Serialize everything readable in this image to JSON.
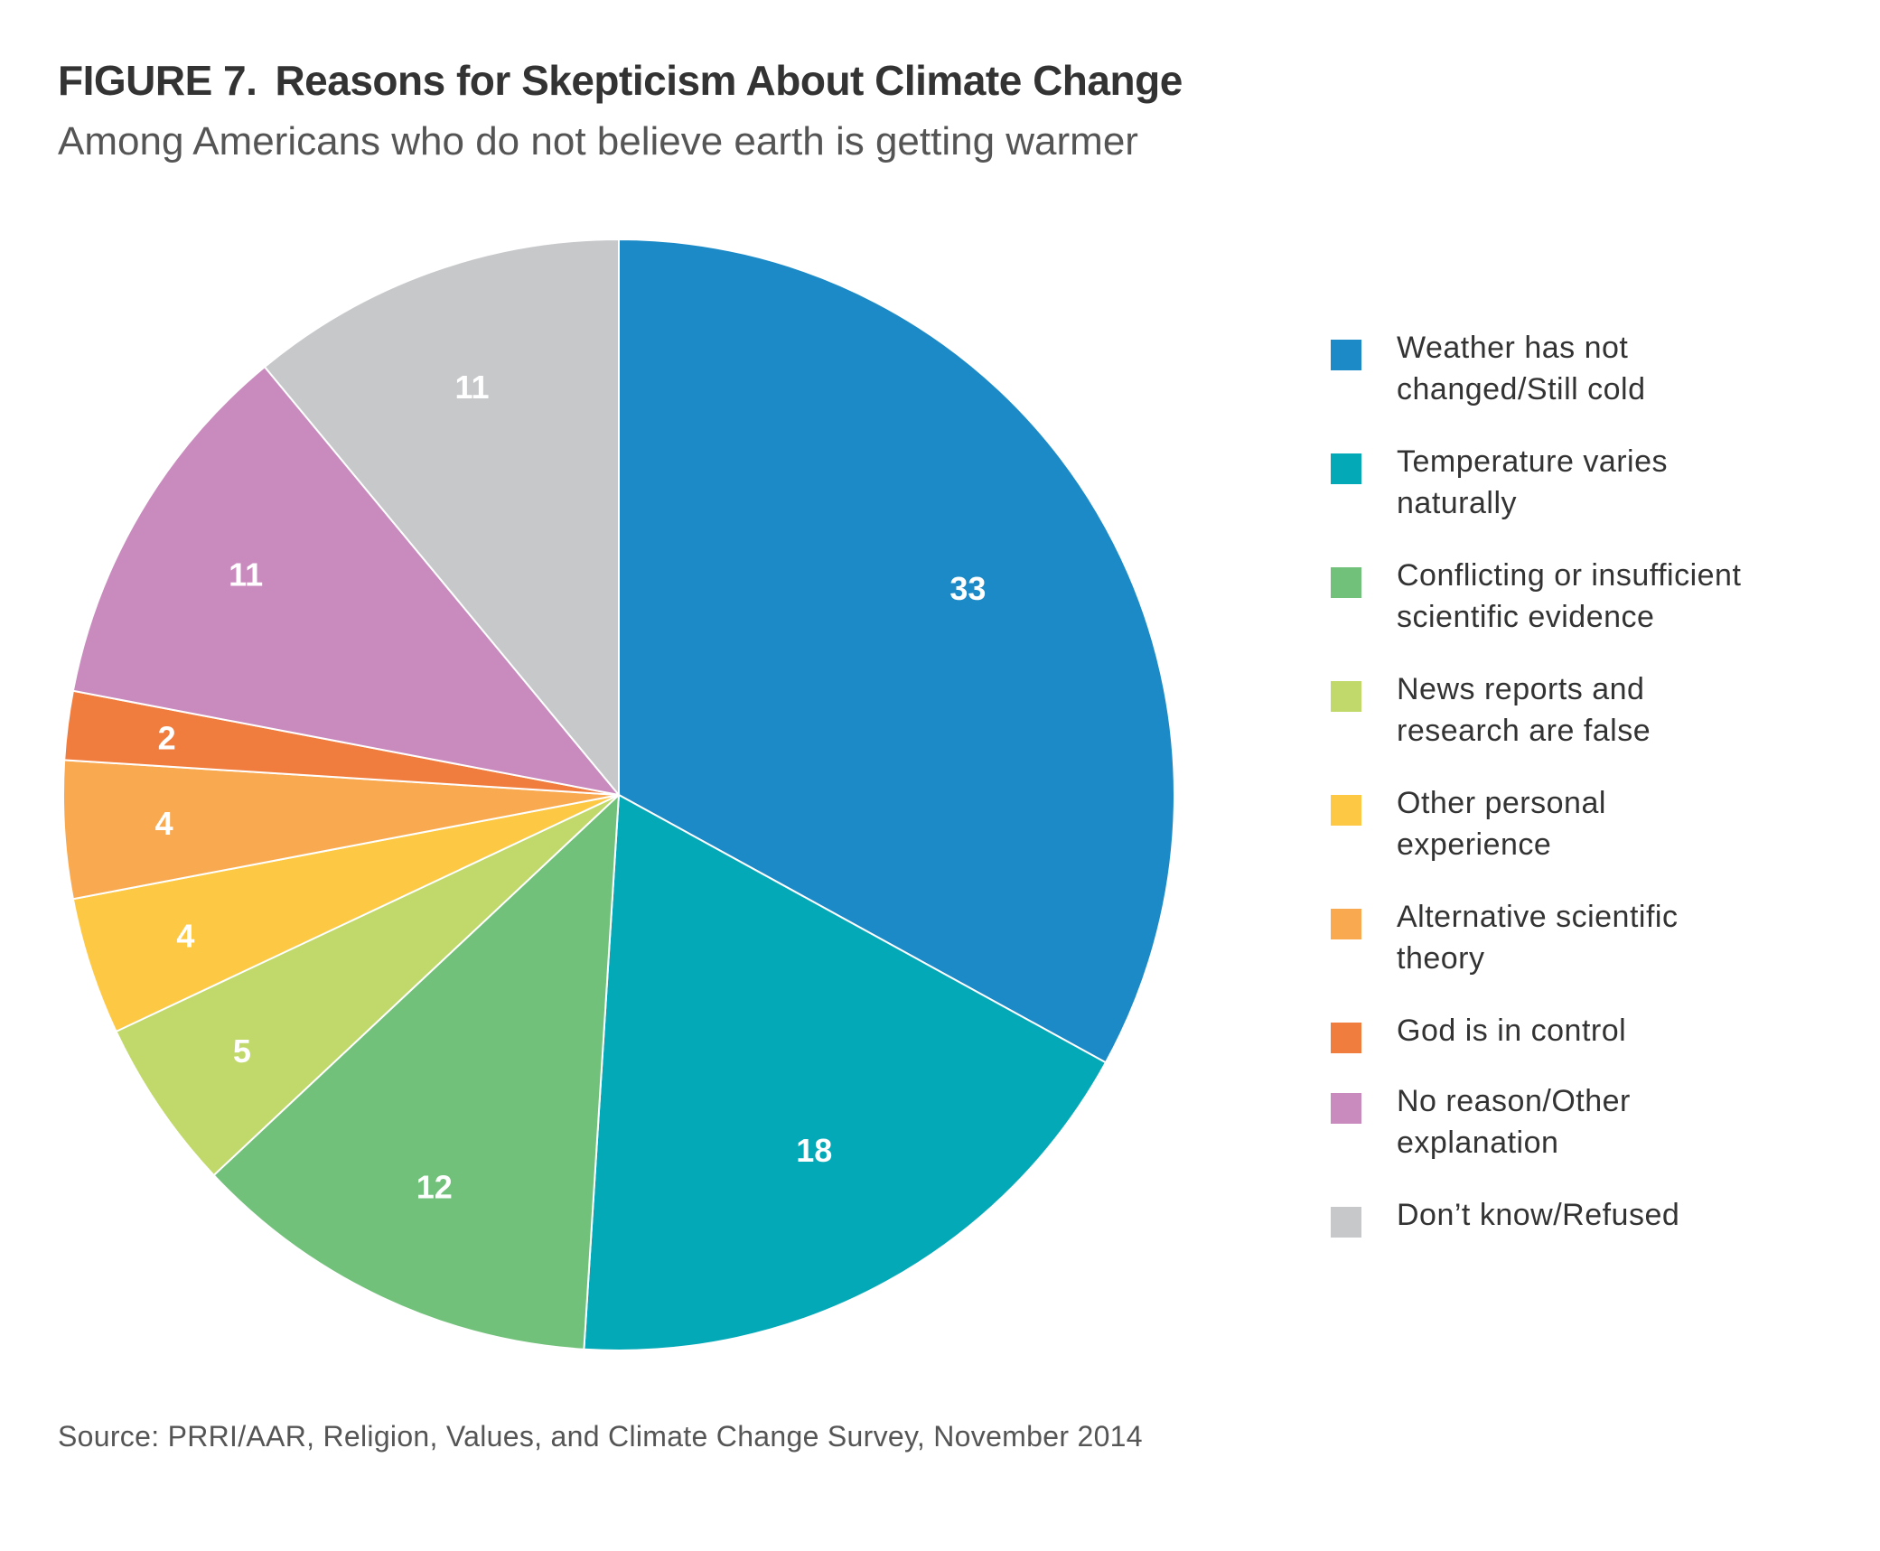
{
  "figure": {
    "number": "FIGURE 7.",
    "title": "Reasons for Skepticism About Climate Change",
    "subtitle": "Among Americans who do not believe earth is getting warmer",
    "source": "Source: PRRI/AAR, Religion, Values, and Climate Change Survey, November 2014"
  },
  "chart_data": {
    "type": "pie",
    "title": "Reasons for Skepticism About Climate Change",
    "subtitle": "Among Americans who do not believe earth is getting warmer",
    "start": "top, clockwise",
    "legend_position": "right",
    "slices": [
      {
        "label": "Weather has not changed/Still cold",
        "value": 33,
        "display": "33",
        "color": "#1b8ac7"
      },
      {
        "label": "Temperature varies naturally",
        "value": 18,
        "display": "18",
        "color": "#04a9b8"
      },
      {
        "label": "Conflicting or insufficient scientific evidence",
        "value": 12,
        "display": "12",
        "color": "#71c17a"
      },
      {
        "label": "News reports and research are false",
        "value": 5,
        "display": "5",
        "color": "#c1d96b"
      },
      {
        "label": "Other personal experience",
        "value": 4,
        "display": "4",
        "color": "#fdc945"
      },
      {
        "label": "Alternative scientific theory",
        "value": 4,
        "display": "4",
        "color": "#f9a94f"
      },
      {
        "label": "God is in control",
        "value": 2,
        "display": "2",
        "color": "#f07c3e"
      },
      {
        "label": "No reason/Other explanation",
        "value": 11,
        "display": "11",
        "color": "#c98abd"
      },
      {
        "label": "Don’t know/Refused",
        "value": 11,
        "display": "11",
        "color": "#c7c8ca"
      }
    ]
  },
  "legend": {
    "items": [
      {
        "lines": [
          "Weather has not",
          "changed/Still cold"
        ],
        "color": "#1b8ac7"
      },
      {
        "lines": [
          "Temperature varies",
          "naturally"
        ],
        "color": "#04a9b8"
      },
      {
        "lines": [
          "Conflicting or insufficient",
          "scientific evidence"
        ],
        "color": "#71c17a"
      },
      {
        "lines": [
          "News reports and",
          "research are false"
        ],
        "color": "#c1d96b"
      },
      {
        "lines": [
          "Other personal",
          "experience"
        ],
        "color": "#fdc945"
      },
      {
        "lines": [
          "Alternative scientific",
          "theory"
        ],
        "color": "#f9a94f"
      },
      {
        "lines": [
          "God is in control"
        ],
        "color": "#f07c3e"
      },
      {
        "lines": [
          "No reason/Other",
          "explanation"
        ],
        "color": "#c98abd"
      },
      {
        "lines": [
          "Don’t know/Refused"
        ],
        "color": "#c7c8ca"
      }
    ]
  }
}
